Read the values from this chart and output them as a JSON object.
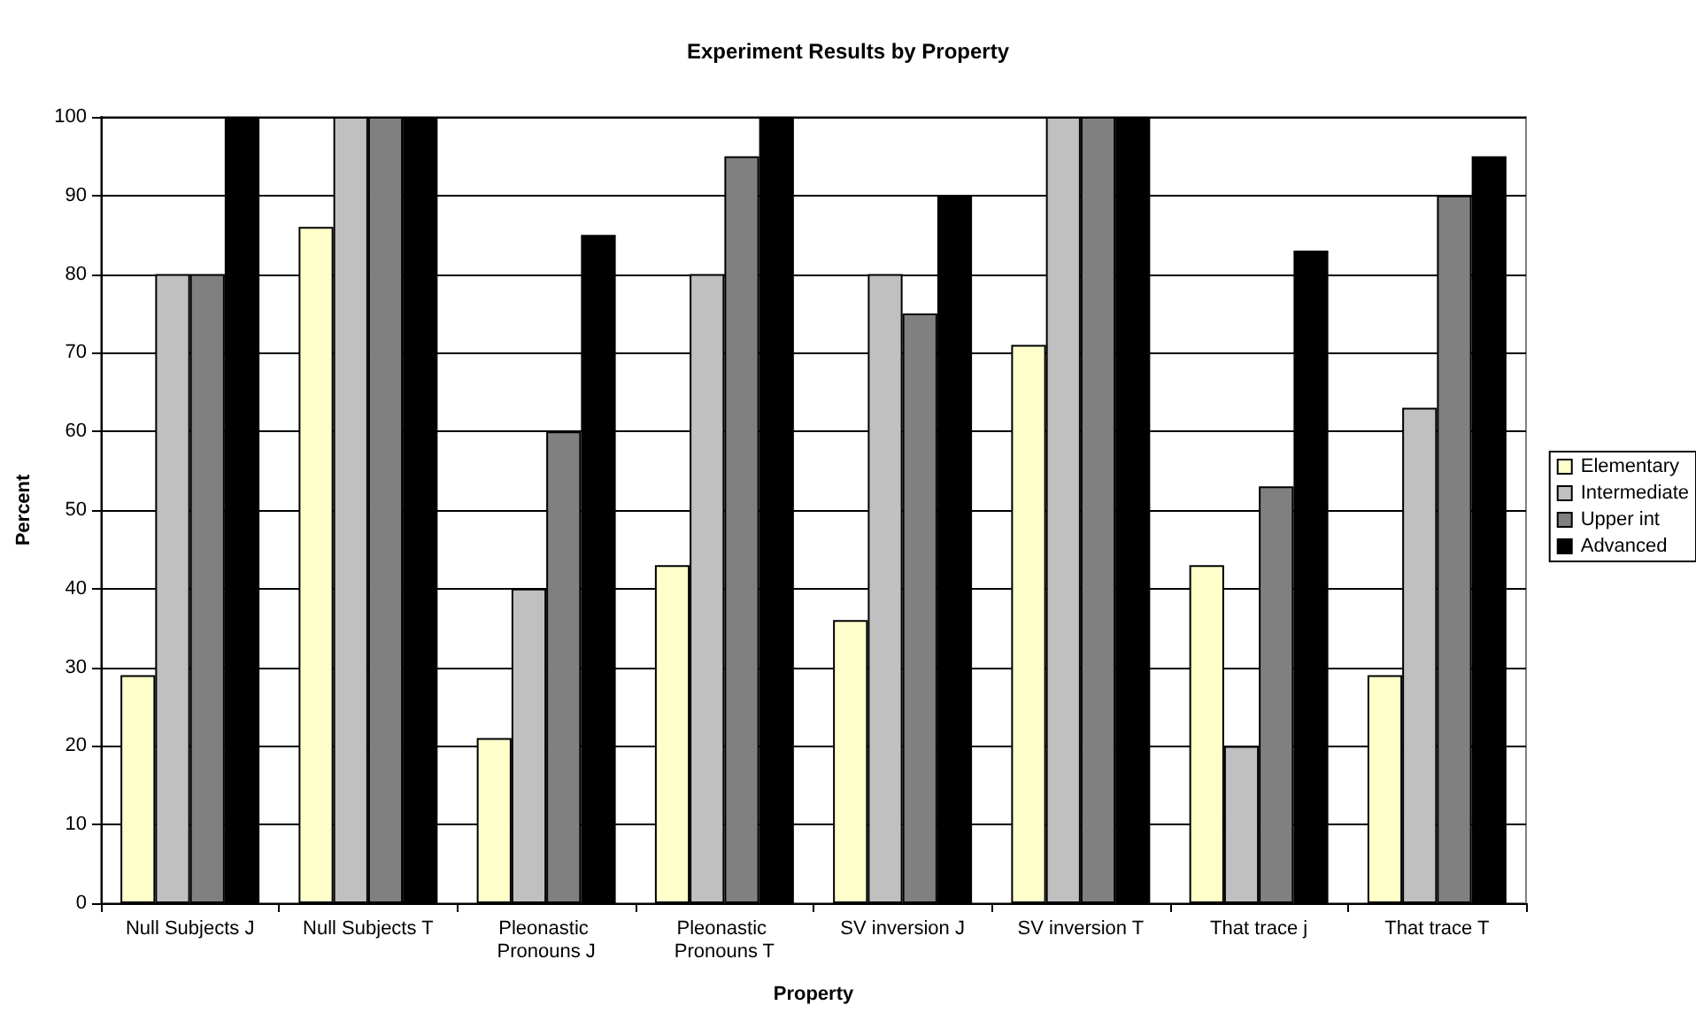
{
  "chart_data": {
    "type": "bar",
    "title": "Experiment Results by Property",
    "xlabel": "Property",
    "ylabel": "Percent",
    "categories": [
      "Null Subjects J",
      "Null Subjects T",
      "Pleonastic Pronouns J",
      "Pleonastic Pronouns T",
      "SV inversion J",
      "SV inversion T",
      "That trace j",
      "That trace T"
    ],
    "series": [
      {
        "name": "Elementary",
        "color": "#ffffcc",
        "values": [
          29,
          86,
          21,
          43,
          36,
          71,
          43,
          29
        ]
      },
      {
        "name": "Intermediate",
        "color": "#c0c0c0",
        "values": [
          80,
          100,
          40,
          80,
          80,
          100,
          20,
          63
        ]
      },
      {
        "name": "Upper int",
        "color": "#808080",
        "values": [
          80,
          100,
          60,
          95,
          75,
          100,
          53,
          90
        ]
      },
      {
        "name": "Advanced",
        "color": "#000000",
        "values": [
          100,
          100,
          85,
          100,
          90,
          100,
          83,
          95
        ]
      }
    ],
    "ylim": [
      0,
      100
    ],
    "yticks": [
      0,
      10,
      20,
      30,
      40,
      50,
      60,
      70,
      80,
      90,
      100
    ],
    "grid": "y",
    "legend": "right"
  }
}
